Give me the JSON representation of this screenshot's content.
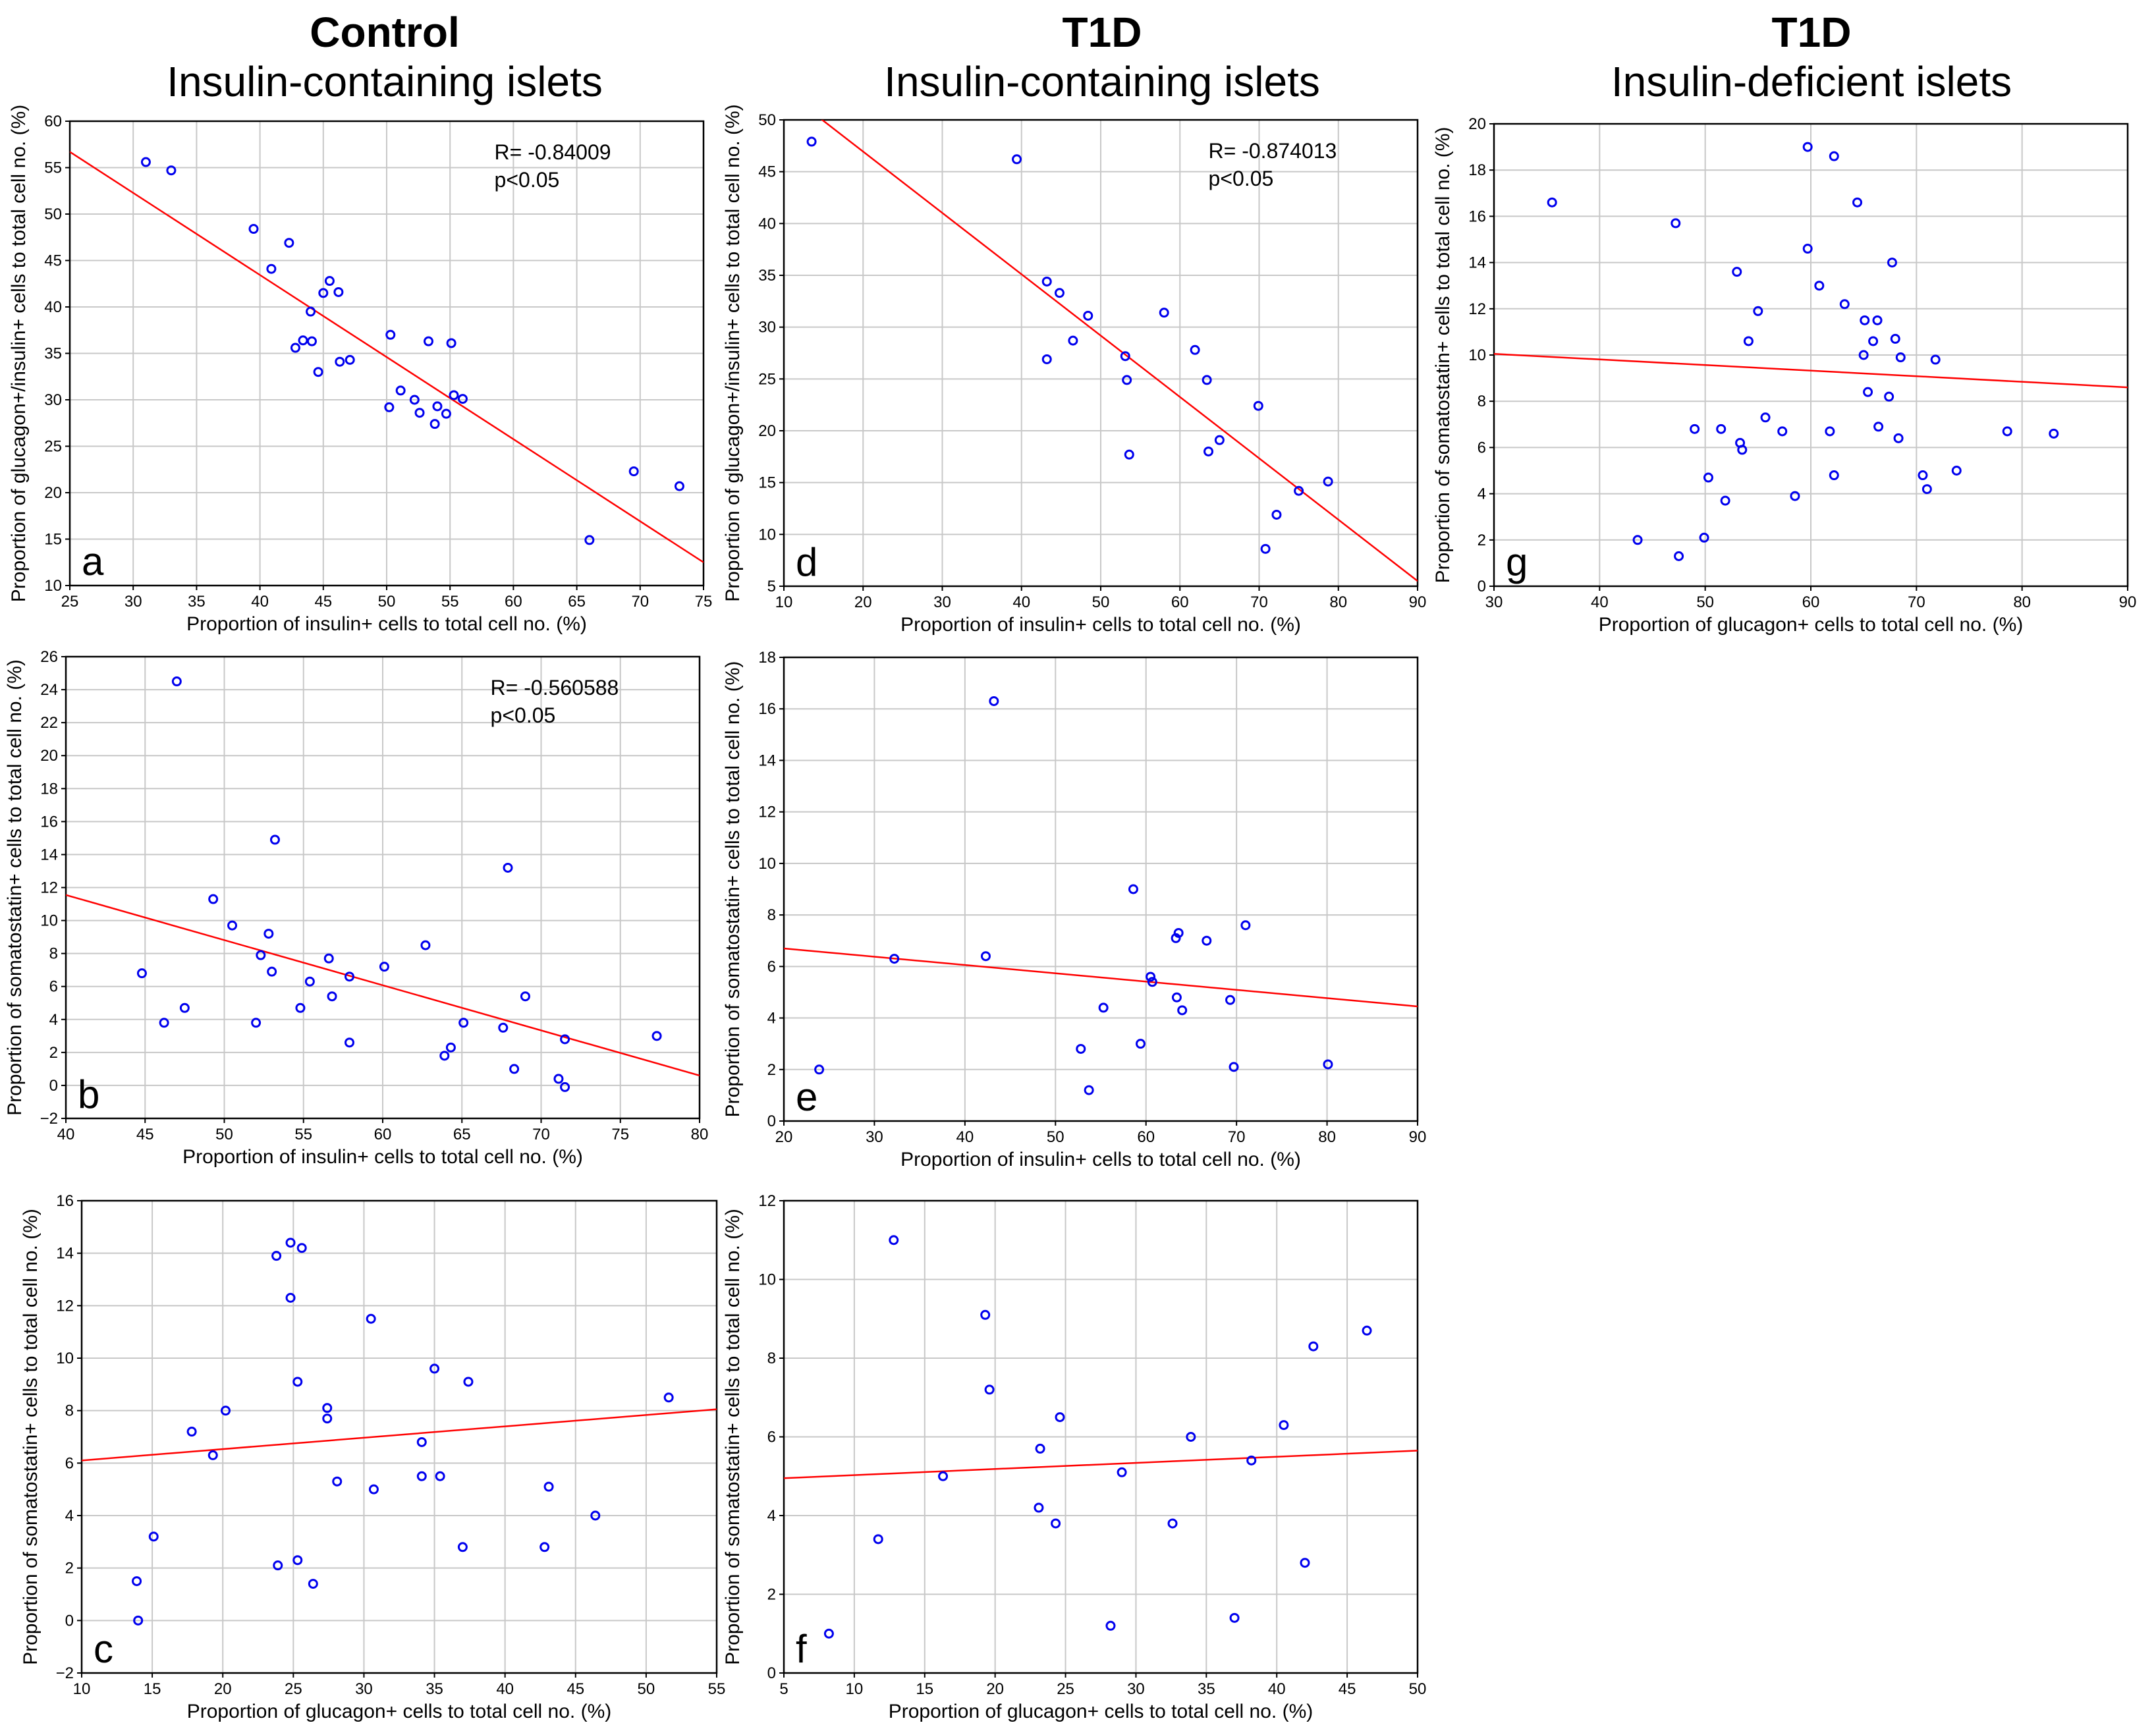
{
  "columns": [
    {
      "group": "Control",
      "subtitle": "Insulin-containing islets"
    },
    {
      "group": "T1D",
      "subtitle": "Insulin-containing islets"
    },
    {
      "group": "T1D",
      "subtitle": "Insulin-deficient islets"
    }
  ],
  "colors": {
    "points": "#0000ee",
    "fit": "#ff0000",
    "grid": "#c8c8c8",
    "axis": "#000000"
  },
  "chart_data": [
    {
      "id": "a",
      "type": "scatter",
      "panel_label": "a",
      "xlabel": "Proportion of insulin+ cells to total cell no. (%)",
      "ylabel": "Proportion of glucagon+/insulin+ cells to total cell no. (%)",
      "xlim": [
        25,
        75
      ],
      "ylim": [
        10,
        60
      ],
      "xticks": [
        25,
        30,
        35,
        40,
        45,
        50,
        55,
        60,
        65,
        70,
        75
      ],
      "yticks": [
        10,
        15,
        20,
        25,
        30,
        35,
        40,
        45,
        50,
        55,
        60
      ],
      "annotation": [
        "R= -0.84009",
        "p<0.05"
      ],
      "fit": [
        [
          25,
          56.7
        ],
        [
          75,
          12.5
        ]
      ],
      "points": [
        [
          31,
          55.6
        ],
        [
          33,
          54.7
        ],
        [
          39.5,
          48.4
        ],
        [
          42.3,
          46.9
        ],
        [
          40.9,
          44.1
        ],
        [
          45.5,
          42.8
        ],
        [
          45,
          41.5
        ],
        [
          46.2,
          41.6
        ],
        [
          44,
          39.5
        ],
        [
          43.4,
          36.4
        ],
        [
          42.8,
          35.6
        ],
        [
          44.1,
          36.3
        ],
        [
          50.3,
          37
        ],
        [
          53.3,
          36.3
        ],
        [
          55.1,
          36.1
        ],
        [
          46.3,
          34.1
        ],
        [
          47.1,
          34.3
        ],
        [
          44.6,
          33
        ],
        [
          51.1,
          31
        ],
        [
          52.2,
          30
        ],
        [
          55.3,
          30.5
        ],
        [
          56,
          30.1
        ],
        [
          50.2,
          29.2
        ],
        [
          52.6,
          28.6
        ],
        [
          54,
          29.3
        ],
        [
          54.7,
          28.5
        ],
        [
          53.8,
          27.4
        ],
        [
          69.5,
          22.3
        ],
        [
          73.1,
          20.7
        ],
        [
          66,
          14.9
        ]
      ]
    },
    {
      "id": "d",
      "type": "scatter",
      "panel_label": "d",
      "xlabel": "Proportion of insulin+ cells to total cell no. (%)",
      "ylabel": "Proportion of glucagon+/insulin+ cells to total cell no. (%)",
      "xlim": [
        10,
        90
      ],
      "ylim": [
        5,
        50
      ],
      "xticks": [
        10,
        20,
        30,
        40,
        50,
        60,
        70,
        80,
        90
      ],
      "yticks": [
        5,
        10,
        15,
        20,
        25,
        30,
        35,
        40,
        45,
        50
      ],
      "annotation": [
        "R= -0.874013",
        "p<0.05"
      ],
      "fit": [
        [
          14.5,
          50.2
        ],
        [
          90,
          5.5
        ]
      ],
      "points": [
        [
          13.5,
          47.9
        ],
        [
          39.4,
          46.2
        ],
        [
          43.2,
          34.4
        ],
        [
          44.8,
          33.3
        ],
        [
          48.4,
          31.1
        ],
        [
          58,
          31.4
        ],
        [
          46.5,
          28.7
        ],
        [
          43.2,
          26.9
        ],
        [
          53.1,
          27.2
        ],
        [
          61.9,
          27.8
        ],
        [
          53.3,
          24.9
        ],
        [
          63.4,
          24.9
        ],
        [
          69.9,
          22.4
        ],
        [
          65,
          19.1
        ],
        [
          53.6,
          17.7
        ],
        [
          63.6,
          18
        ],
        [
          75,
          14.2
        ],
        [
          78.7,
          15.1
        ],
        [
          72.2,
          11.9
        ],
        [
          70.8,
          8.6
        ]
      ]
    },
    {
      "id": "g",
      "type": "scatter",
      "panel_label": "g",
      "xlabel": "Proportion of glucagon+ cells to total cell no. (%)",
      "ylabel": "Proportion of somatostatin+ cells to total cell no. (%)",
      "xlim": [
        30,
        90
      ],
      "ylim": [
        0,
        20
      ],
      "xticks": [
        30,
        40,
        50,
        60,
        70,
        80,
        90
      ],
      "yticks": [
        0,
        2,
        4,
        6,
        8,
        10,
        12,
        14,
        16,
        18,
        20
      ],
      "annotation": [],
      "fit": [
        [
          30,
          10.05
        ],
        [
          90,
          8.6
        ]
      ],
      "points": [
        [
          35.5,
          16.6
        ],
        [
          47.2,
          15.7
        ],
        [
          59.7,
          19
        ],
        [
          62.2,
          18.6
        ],
        [
          64.4,
          16.6
        ],
        [
          59.7,
          14.6
        ],
        [
          67.7,
          14
        ],
        [
          53,
          13.6
        ],
        [
          60.8,
          13
        ],
        [
          55,
          11.9
        ],
        [
          63.2,
          12.2
        ],
        [
          65.1,
          11.5
        ],
        [
          66.3,
          11.5
        ],
        [
          54.1,
          10.6
        ],
        [
          65.9,
          10.6
        ],
        [
          68,
          10.7
        ],
        [
          65,
          10
        ],
        [
          68.5,
          9.9
        ],
        [
          71.8,
          9.8
        ],
        [
          65.4,
          8.4
        ],
        [
          67.4,
          8.2
        ],
        [
          55.7,
          7.3
        ],
        [
          49,
          6.8
        ],
        [
          51.5,
          6.8
        ],
        [
          57.3,
          6.7
        ],
        [
          61.8,
          6.7
        ],
        [
          66.4,
          6.9
        ],
        [
          68.3,
          6.4
        ],
        [
          78.6,
          6.7
        ],
        [
          83,
          6.6
        ],
        [
          53.3,
          6.2
        ],
        [
          53.5,
          5.9
        ],
        [
          50.3,
          4.7
        ],
        [
          62.2,
          4.8
        ],
        [
          70.6,
          4.8
        ],
        [
          73.8,
          5
        ],
        [
          71,
          4.2
        ],
        [
          51.9,
          3.7
        ],
        [
          58.5,
          3.9
        ],
        [
          43.6,
          2
        ],
        [
          49.9,
          2.1
        ],
        [
          47.5,
          1.3
        ]
      ]
    },
    {
      "id": "b",
      "type": "scatter",
      "panel_label": "b",
      "xlabel": "Proportion of insulin+ cells to total cell no. (%)",
      "ylabel": "Proportion of somatostatin+ cells to total cell no. (%)",
      "xlim": [
        40,
        80
      ],
      "ylim": [
        -2,
        26
      ],
      "xticks": [
        40,
        45,
        50,
        55,
        60,
        65,
        70,
        75,
        80
      ],
      "yticks": [
        -2,
        0,
        2,
        4,
        6,
        8,
        10,
        12,
        14,
        16,
        18,
        20,
        22,
        24,
        26
      ],
      "annotation": [
        "R= -0.560588",
        "p<0.05"
      ],
      "fit": [
        [
          40,
          11.55
        ],
        [
          80,
          0.6
        ]
      ],
      "points": [
        [
          47,
          24.5
        ],
        [
          53.2,
          14.9
        ],
        [
          67.9,
          13.2
        ],
        [
          49.3,
          11.3
        ],
        [
          50.5,
          9.7
        ],
        [
          52.8,
          9.2
        ],
        [
          62.7,
          8.5
        ],
        [
          52.3,
          7.9
        ],
        [
          56.6,
          7.7
        ],
        [
          60.1,
          7.2
        ],
        [
          44.8,
          6.8
        ],
        [
          53,
          6.9
        ],
        [
          57.9,
          6.6
        ],
        [
          55.4,
          6.3
        ],
        [
          56.8,
          5.4
        ],
        [
          69,
          5.4
        ],
        [
          47.5,
          4.7
        ],
        [
          54.8,
          4.7
        ],
        [
          46.2,
          3.8
        ],
        [
          52,
          3.8
        ],
        [
          65.1,
          3.8
        ],
        [
          67.6,
          3.5
        ],
        [
          71.5,
          2.8
        ],
        [
          77.3,
          3
        ],
        [
          57.9,
          2.6
        ],
        [
          64.3,
          2.3
        ],
        [
          63.9,
          1.8
        ],
        [
          68.3,
          1
        ],
        [
          71.1,
          0.4
        ],
        [
          71.5,
          -0.1
        ]
      ]
    },
    {
      "id": "e",
      "type": "scatter",
      "panel_label": "e",
      "xlabel": "Proportion of insulin+ cells to total cell no. (%)",
      "ylabel": "Proportion of somatostatin+ cells to total cell no. (%)",
      "xlim": [
        20,
        90
      ],
      "ylim": [
        0,
        18
      ],
      "xticks": [
        20,
        30,
        40,
        50,
        60,
        70,
        80,
        90
      ],
      "yticks": [
        0,
        2,
        4,
        6,
        8,
        10,
        12,
        14,
        16,
        18
      ],
      "annotation": [],
      "fit": [
        [
          20,
          6.7
        ],
        [
          90,
          4.45
        ]
      ],
      "points": [
        [
          43.2,
          16.3
        ],
        [
          58.6,
          9
        ],
        [
          71,
          7.6
        ],
        [
          63.6,
          7.3
        ],
        [
          63.3,
          7.1
        ],
        [
          66.7,
          7
        ],
        [
          32.2,
          6.3
        ],
        [
          42.3,
          6.4
        ],
        [
          60.5,
          5.6
        ],
        [
          60.7,
          5.4
        ],
        [
          63.4,
          4.8
        ],
        [
          69.3,
          4.7
        ],
        [
          55.3,
          4.4
        ],
        [
          64,
          4.3
        ],
        [
          52.8,
          2.8
        ],
        [
          59.4,
          3
        ],
        [
          69.7,
          2.1
        ],
        [
          80.1,
          2.2
        ],
        [
          23.9,
          2
        ],
        [
          53.7,
          1.2
        ]
      ]
    },
    {
      "id": "c",
      "type": "scatter",
      "panel_label": "c",
      "xlabel": "Proportion of glucagon+ cells to total cell no. (%)",
      "ylabel": "Proportion of somatostatin+ cells to total cell no. (%)",
      "xlim": [
        10,
        55
      ],
      "ylim": [
        -2,
        16
      ],
      "xticks": [
        10,
        15,
        20,
        25,
        30,
        35,
        40,
        45,
        50,
        55
      ],
      "yticks": [
        -2,
        0,
        2,
        4,
        6,
        8,
        10,
        12,
        14,
        16
      ],
      "annotation": [],
      "fit": [
        [
          10,
          6.1
        ],
        [
          55,
          8.05
        ]
      ],
      "points": [
        [
          24.8,
          14.4
        ],
        [
          25.6,
          14.2
        ],
        [
          23.8,
          13.9
        ],
        [
          24.8,
          12.3
        ],
        [
          30.5,
          11.5
        ],
        [
          35,
          9.6
        ],
        [
          25.3,
          9.1
        ],
        [
          37.4,
          9.1
        ],
        [
          51.6,
          8.5
        ],
        [
          27.4,
          8.1
        ],
        [
          27.4,
          7.7
        ],
        [
          20.2,
          8
        ],
        [
          17.8,
          7.2
        ],
        [
          19.3,
          6.3
        ],
        [
          34.1,
          6.8
        ],
        [
          34.1,
          5.5
        ],
        [
          35.4,
          5.5
        ],
        [
          28.1,
          5.3
        ],
        [
          30.7,
          5
        ],
        [
          43.1,
          5.1
        ],
        [
          46.4,
          4
        ],
        [
          15.1,
          3.2
        ],
        [
          37,
          2.8
        ],
        [
          42.8,
          2.8
        ],
        [
          23.9,
          2.1
        ],
        [
          25.3,
          2.3
        ],
        [
          26.4,
          1.4
        ],
        [
          13.9,
          1.5
        ],
        [
          14,
          0
        ]
      ]
    },
    {
      "id": "f",
      "type": "scatter",
      "panel_label": "f",
      "xlabel": "Proportion of glucagon+ cells to total cell no. (%)",
      "ylabel": "Proportion of somatostatin+ cells to total cell no. (%)",
      "xlim": [
        5,
        50
      ],
      "ylim": [
        0,
        12
      ],
      "xticks": [
        5,
        10,
        15,
        20,
        25,
        30,
        35,
        40,
        45,
        50
      ],
      "yticks": [
        0,
        2,
        4,
        6,
        8,
        10,
        12
      ],
      "annotation": [],
      "fit": [
        [
          5,
          4.95
        ],
        [
          50,
          5.65
        ]
      ],
      "points": [
        [
          12.8,
          11
        ],
        [
          19.3,
          9.1
        ],
        [
          46.4,
          8.7
        ],
        [
          42.6,
          8.3
        ],
        [
          19.6,
          7.2
        ],
        [
          24.6,
          6.5
        ],
        [
          40.5,
          6.3
        ],
        [
          33.9,
          6
        ],
        [
          23.2,
          5.7
        ],
        [
          38.2,
          5.4
        ],
        [
          16.3,
          5
        ],
        [
          29,
          5.1
        ],
        [
          23.1,
          4.2
        ],
        [
          24.3,
          3.8
        ],
        [
          32.6,
          3.8
        ],
        [
          11.7,
          3.4
        ],
        [
          42,
          2.8
        ],
        [
          37,
          1.4
        ],
        [
          28.2,
          1.2
        ],
        [
          8.2,
          1
        ]
      ]
    }
  ]
}
